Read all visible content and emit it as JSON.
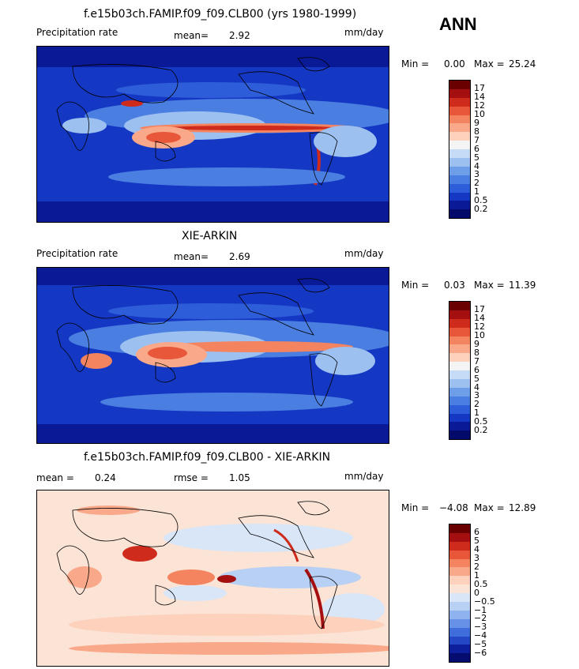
{
  "season": "ANN",
  "panels": [
    {
      "title": "f.e15b03ch.FAMIP.f09_f09.CLB00 (yrs 1980-1999)",
      "left_label": "Precipitation rate",
      "stat1_label": "mean=",
      "stat1_value": "2.92",
      "units": "mm/day",
      "min_label": "Min =",
      "min_value": "0.00",
      "max_label": "Max =",
      "max_value": "25.24",
      "levels": [
        "17",
        "14",
        "12",
        "10",
        "9",
        "8",
        "7",
        "6",
        "5",
        "4",
        "3",
        "2",
        "1",
        "0.5",
        "0.2"
      ]
    },
    {
      "title": "XIE-ARKIN",
      "left_label": "Precipitation rate",
      "stat1_label": "mean=",
      "stat1_value": "2.69",
      "units": "mm/day",
      "min_label": "Min =",
      "min_value": "0.03",
      "max_label": "Max =",
      "max_value": "11.39",
      "levels": [
        "17",
        "14",
        "12",
        "10",
        "9",
        "8",
        "7",
        "6",
        "5",
        "4",
        "3",
        "2",
        "1",
        "0.5",
        "0.2"
      ]
    },
    {
      "title": "f.e15b03ch.FAMIP.f09_f09.CLB00 - XIE-ARKIN",
      "stat1_label": "mean =",
      "stat1_value": "0.24",
      "stat2_label": "rmse =",
      "stat2_value": "1.05",
      "units": "mm/day",
      "min_label": "Min =",
      "min_value": "−4.08",
      "max_label": "Max =",
      "max_value": "12.89",
      "levels": [
        "6",
        "5",
        "4",
        "3",
        "2",
        "1",
        "0.5",
        "0",
        "−0.5",
        "−1",
        "−2",
        "−3",
        "−4",
        "−5",
        "−6"
      ]
    }
  ],
  "colors": {
    "precip_scale": [
      "#6b0000",
      "#a50f0f",
      "#cf2b1d",
      "#e8573a",
      "#f3845f",
      "#f9a98a",
      "#fdd1bc",
      "#f4f4f4",
      "#c6dbf5",
      "#9cc0f0",
      "#6f9ee8",
      "#4a7ee0",
      "#2d5dd8",
      "#1538c4",
      "#0a1a96",
      "#040a6a"
    ],
    "diff_scale": [
      "#6b0000",
      "#a50f0f",
      "#cf2b1d",
      "#e8573a",
      "#f3845f",
      "#f9a98a",
      "#fdd1bc",
      "#fbe3d6",
      "#d8e6f8",
      "#b7d0f3",
      "#8fb3ee",
      "#6791e6",
      "#3f6ddc",
      "#2447c6",
      "#0e1f9e",
      "#050c70"
    ]
  }
}
